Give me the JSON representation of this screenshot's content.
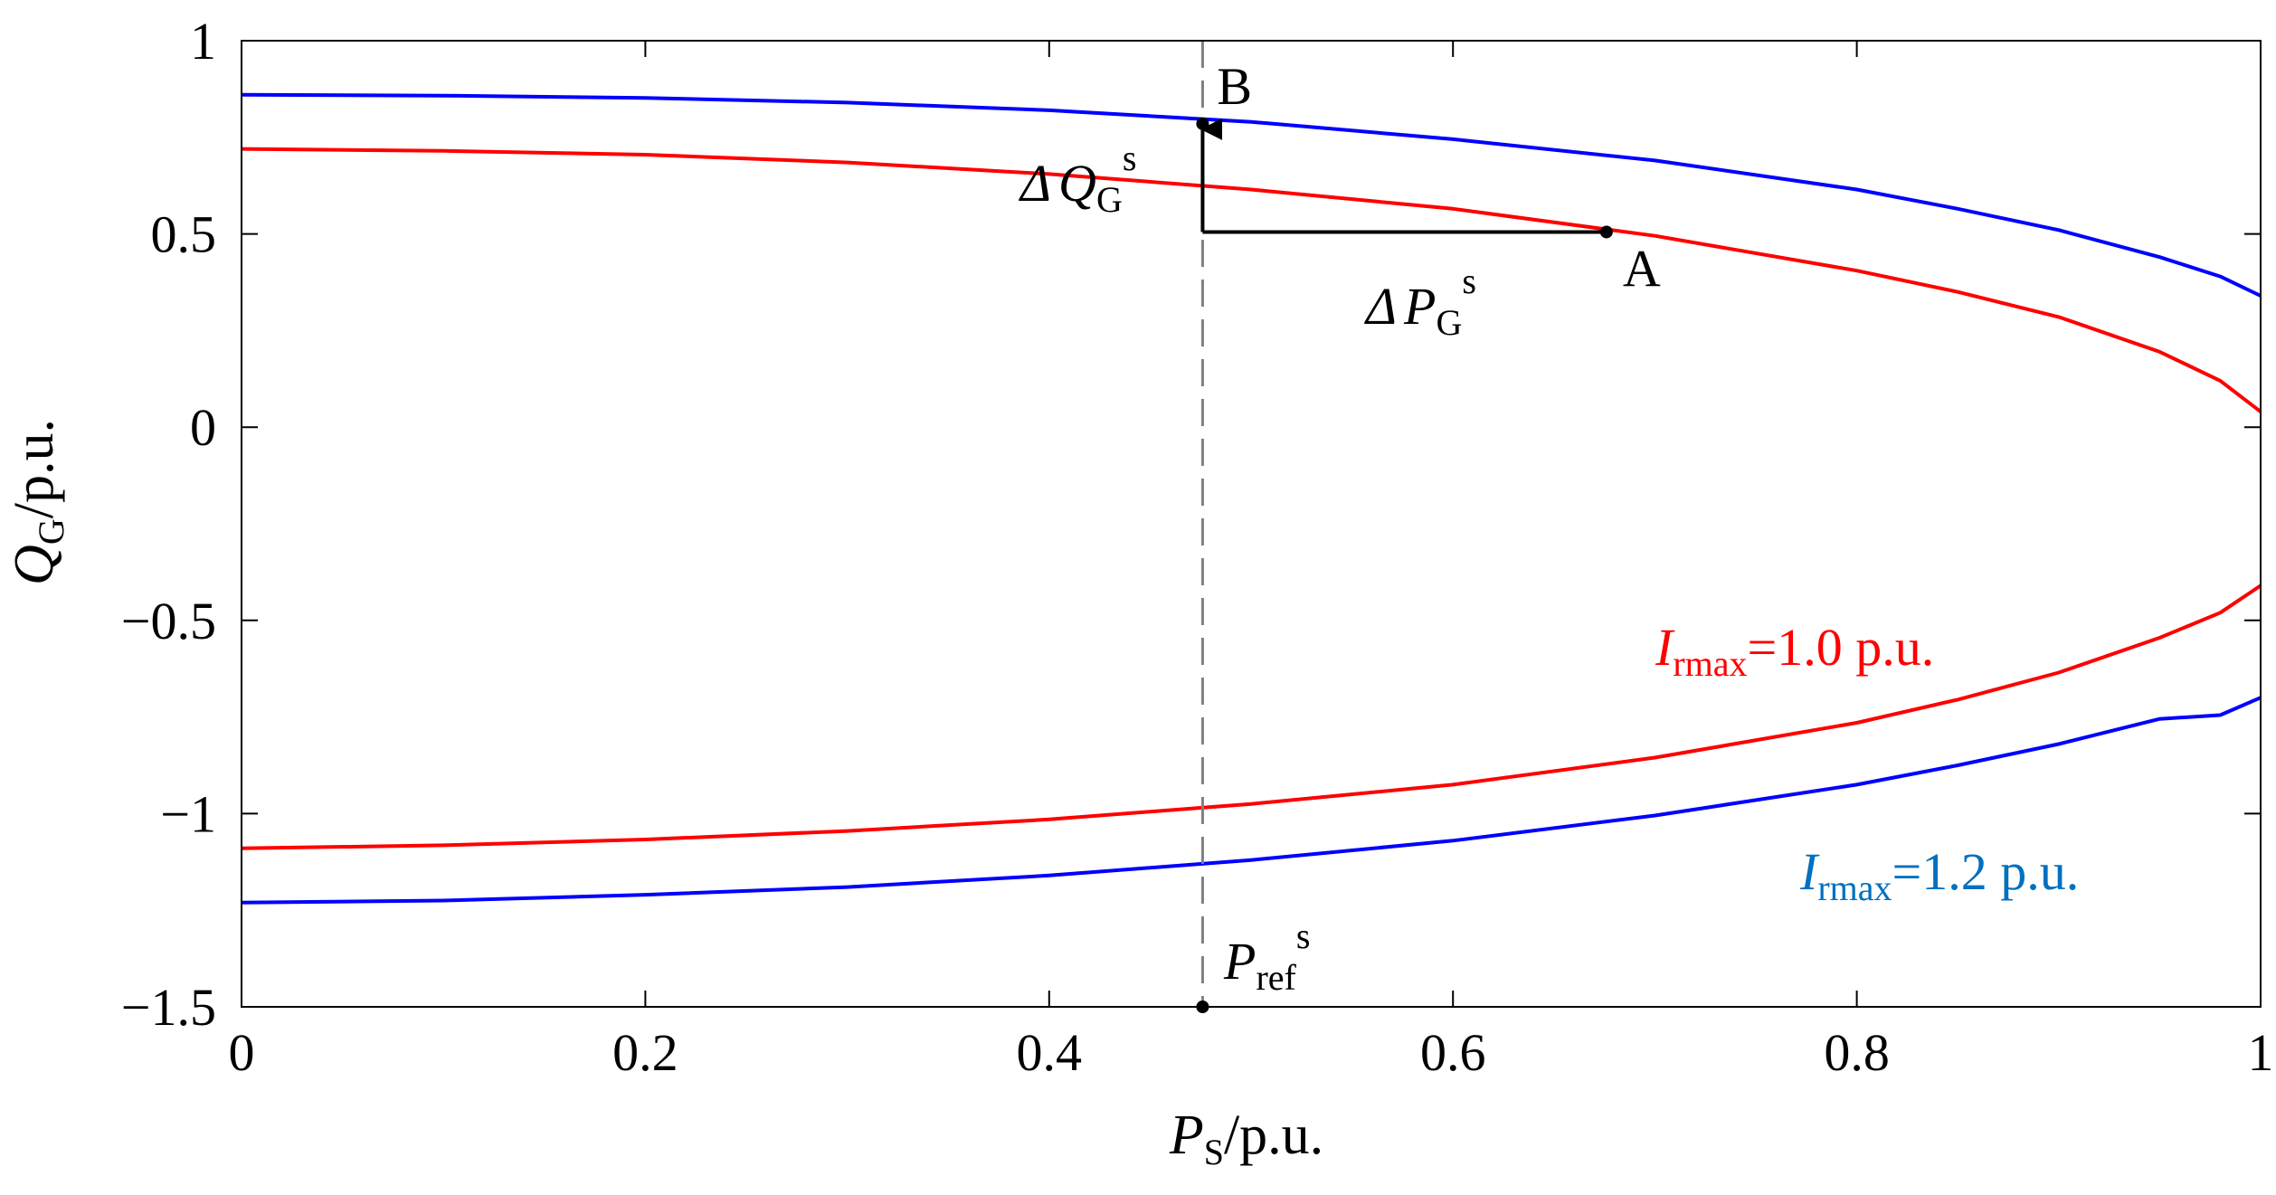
{
  "chart_data": {
    "type": "line",
    "xlim": [
      0,
      1
    ],
    "ylim": [
      -1.5,
      1
    ],
    "x_ticks": [
      "0",
      "0.2",
      "0.4",
      "0.6",
      "0.8",
      "1"
    ],
    "y_ticks": [
      "1",
      "0.5",
      "0",
      "−0.5",
      "−1",
      "−1.5"
    ],
    "xlabel": {
      "main": "P",
      "sub": "S",
      "unit": "/p.u."
    },
    "ylabel": {
      "main": "Q",
      "sub": "G",
      "unit": "/p.u."
    },
    "x": [
      0,
      0.1,
      0.2,
      0.3,
      0.4,
      0.5,
      0.6,
      0.7,
      0.8,
      0.85,
      0.9,
      0.95,
      0.98,
      1.0
    ],
    "series": [
      {
        "name": "I_rmax=1.0 p.u. upper",
        "color": "#ff0000",
        "values": [
          0.72,
          0.715,
          0.705,
          0.685,
          0.655,
          0.615,
          0.565,
          0.495,
          0.405,
          0.35,
          0.285,
          0.195,
          0.12,
          0.04
        ]
      },
      {
        "name": "I_rmax=1.0 p.u. lower",
        "color": "#ff0000",
        "values": [
          -1.09,
          -1.082,
          -1.067,
          -1.045,
          -1.015,
          -0.975,
          -0.925,
          -0.855,
          -0.765,
          -0.705,
          -0.635,
          -0.545,
          -0.48,
          -0.41
        ]
      },
      {
        "name": "I_rmax=1.2 p.u. upper",
        "color": "#0000ff",
        "values": [
          0.86,
          0.858,
          0.852,
          0.84,
          0.82,
          0.79,
          0.745,
          0.69,
          0.615,
          0.565,
          0.51,
          0.44,
          0.39,
          0.34
        ]
      },
      {
        "name": "I_rmax=1.2 p.u. lower",
        "color": "#0000ff",
        "values": [
          -1.23,
          -1.225,
          -1.21,
          -1.19,
          -1.16,
          -1.12,
          -1.07,
          -1.005,
          -0.925,
          -0.875,
          -0.82,
          -0.755,
          -0.745,
          -0.7
        ]
      }
    ],
    "reference_line": {
      "x": 0.476,
      "color": "#808080",
      "style": "dashed"
    },
    "points": [
      {
        "label": "A",
        "x": 0.676,
        "y": 0.505
      },
      {
        "label": "B",
        "x": 0.476,
        "y": 0.785
      }
    ],
    "annotations": {
      "delta_q": {
        "symbol": "Δ",
        "main": "Q",
        "sub": "G",
        "sup": "s"
      },
      "delta_p": {
        "symbol": "Δ",
        "main": "P",
        "sub": "G",
        "sup": "s"
      },
      "p_ref": {
        "main": "P",
        "sub": "ref",
        "sup": "s"
      },
      "legend_red": {
        "main": "I",
        "sub": "rmax",
        "value": "=1.0 p.u.",
        "color": "#ff0000"
      },
      "legend_blue": {
        "main": "I",
        "sub": "rmax",
        "value": "=1.2 p.u.",
        "color": "#0070c0"
      }
    }
  }
}
